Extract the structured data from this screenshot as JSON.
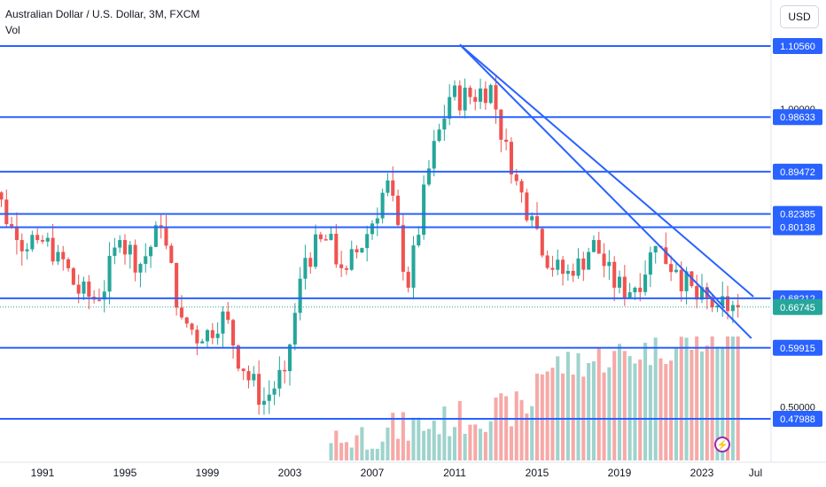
{
  "header": {
    "symbol_title": "Australian Dollar / U.S. Dollar, 3M, FXCM",
    "volume_label": "Vol"
  },
  "currency_button": "USD",
  "colors": {
    "level_line": "#2962ff",
    "trend_line": "#2962ff",
    "candle_up": "#26a69a",
    "candle_down": "#ef5350",
    "volume_up": "#9fd3cd",
    "volume_down": "#f6a9a7",
    "current_price_tag": "#26a69a",
    "level_tag": "#2962ff"
  },
  "chart_data": {
    "type": "candlestick",
    "title": "Australian Dollar / U.S. Dollar, 3M, FXCM",
    "x_ticks": [
      "1991",
      "1995",
      "1999",
      "2003",
      "2007",
      "2011",
      "2015",
      "2019",
      "2023",
      "Jul"
    ],
    "y_ticks": [
      1.0,
      0.5
    ],
    "y_tick_labels": [
      "1.00000",
      "0.50000"
    ],
    "ylim": [
      0.452,
      1.142
    ],
    "horizontal_levels": [
      {
        "value": 1.1056,
        "label": "1.10560"
      },
      {
        "value": 0.98633,
        "label": "0.98633"
      },
      {
        "value": 0.89472,
        "label": "0.89472"
      },
      {
        "value": 0.82385,
        "label": "0.82385"
      },
      {
        "value": 0.80138,
        "label": "0.80138"
      },
      {
        "value": 0.68212,
        "label": "0.68212"
      },
      {
        "value": 0.59915,
        "label": "0.59915"
      },
      {
        "value": 0.47988,
        "label": "0.47988"
      }
    ],
    "current_price": {
      "value": 0.66745,
      "label": "0.66745"
    },
    "trend_lines": [
      {
        "from": {
          "year": 2011.25,
          "price": 1.108
        },
        "to": {
          "year": 2025.5,
          "price": 0.685
        }
      },
      {
        "from": {
          "year": 2011.25,
          "price": 1.108
        },
        "to": {
          "year": 2025.4,
          "price": 0.615
        }
      },
      {
        "from": {
          "year": 2023.2,
          "price": 0.7
        },
        "to": {
          "year": 2024.1,
          "price": 0.666
        }
      }
    ],
    "candles_yearly_approx": [
      {
        "year": 1988,
        "open": 0.72,
        "close": 0.86
      },
      {
        "year": 1989,
        "open": 0.86,
        "close": 0.78
      },
      {
        "year": 1990,
        "open": 0.78,
        "close": 0.78
      },
      {
        "year": 1991,
        "open": 0.78,
        "close": 0.76
      },
      {
        "year": 1992,
        "open": 0.76,
        "close": 0.69
      },
      {
        "year": 1993,
        "open": 0.69,
        "close": 0.68
      },
      {
        "year": 1994,
        "open": 0.68,
        "close": 0.78
      },
      {
        "year": 1995,
        "open": 0.78,
        "close": 0.74
      },
      {
        "year": 1996,
        "open": 0.74,
        "close": 0.8
      },
      {
        "year": 1997,
        "open": 0.8,
        "close": 0.65
      },
      {
        "year": 1998,
        "open": 0.65,
        "close": 0.61
      },
      {
        "year": 1999,
        "open": 0.61,
        "close": 0.66
      },
      {
        "year": 2000,
        "open": 0.66,
        "close": 0.56
      },
      {
        "year": 2001,
        "open": 0.56,
        "close": 0.51
      },
      {
        "year": 2002,
        "open": 0.51,
        "close": 0.56
      },
      {
        "year": 2003,
        "open": 0.56,
        "close": 0.75
      },
      {
        "year": 2004,
        "open": 0.75,
        "close": 0.78
      },
      {
        "year": 2005,
        "open": 0.78,
        "close": 0.73
      },
      {
        "year": 2006,
        "open": 0.73,
        "close": 0.79
      },
      {
        "year": 2007,
        "open": 0.79,
        "close": 0.88
      },
      {
        "year": 2008,
        "open": 0.88,
        "close": 0.7
      },
      {
        "year": 2009,
        "open": 0.7,
        "close": 0.9
      },
      {
        "year": 2010,
        "open": 0.9,
        "close": 1.02
      },
      {
        "year": 2011,
        "open": 1.02,
        "close": 1.02
      },
      {
        "year": 2012,
        "open": 1.02,
        "close": 1.04
      },
      {
        "year": 2013,
        "open": 1.04,
        "close": 0.89
      },
      {
        "year": 2014,
        "open": 0.89,
        "close": 0.82
      },
      {
        "year": 2015,
        "open": 0.82,
        "close": 0.73
      },
      {
        "year": 2016,
        "open": 0.73,
        "close": 0.72
      },
      {
        "year": 2017,
        "open": 0.72,
        "close": 0.78
      },
      {
        "year": 2018,
        "open": 0.78,
        "close": 0.7
      },
      {
        "year": 2019,
        "open": 0.7,
        "close": 0.7
      },
      {
        "year": 2020,
        "open": 0.7,
        "close": 0.77
      },
      {
        "year": 2021,
        "open": 0.77,
        "close": 0.73
      },
      {
        "year": 2022,
        "open": 0.73,
        "close": 0.68
      },
      {
        "year": 2023,
        "open": 0.68,
        "close": 0.67
      },
      {
        "year": 2024,
        "open": 0.67,
        "close": 0.667
      }
    ],
    "grid": false
  }
}
